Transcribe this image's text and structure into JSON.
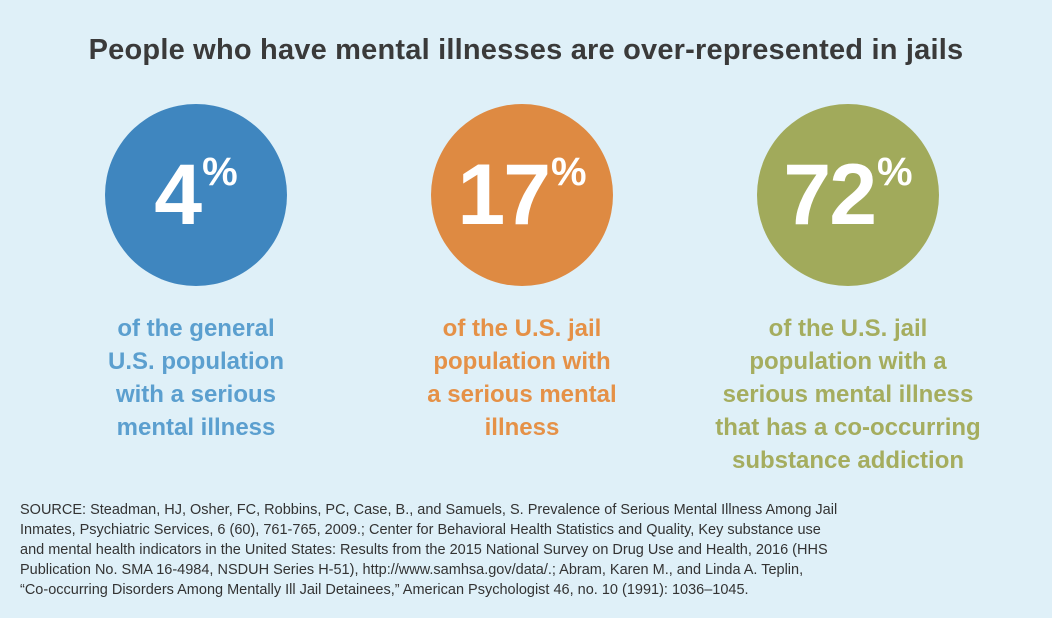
{
  "title": "People who have mental illnesses are over-represented in jails",
  "stats": [
    {
      "value": "4",
      "unit": "%",
      "color": "#3f86bf",
      "caption_color": "#5b9fcf",
      "caption_lines": [
        "of the general",
        "U.S. population",
        "with a serious",
        "mental illness"
      ]
    },
    {
      "value": "17",
      "unit": "%",
      "color": "#de8a42",
      "caption_color": "#e59147",
      "caption_lines": [
        "of the U.S. jail",
        "population with",
        "a serious mental",
        "illness"
      ]
    },
    {
      "value": "72",
      "unit": "%",
      "color": "#a1aa5b",
      "caption_color": "#a5ad5f",
      "caption_lines": [
        "of the U.S. jail",
        "population with a",
        "serious mental illness",
        "that has a co-occurring",
        "substance addiction"
      ]
    }
  ],
  "source_lines": [
    "SOURCE: Steadman, HJ, Osher, FC, Robbins, PC, Case, B., and Samuels, S. Prevalence of Serious Mental Illness Among Jail",
    "Inmates, Psychiatric Services, 6 (60), 761-765, 2009.; Center for Behavioral Health Statistics and Quality, Key substance use",
    "and mental health indicators in the United States: Results from the 2015 National Survey on Drug Use and Health, 2016 (HHS",
    "Publication No. SMA 16-4984, NSDUH Series H-51), http://www.samhsa.gov/data/.; Abram, Karen M., and Linda A. Teplin,",
    "“Co-occurring Disorders Among Mentally Ill Jail Detainees,” American Psychologist 46, no. 10 (1991): 1036–1045."
  ]
}
